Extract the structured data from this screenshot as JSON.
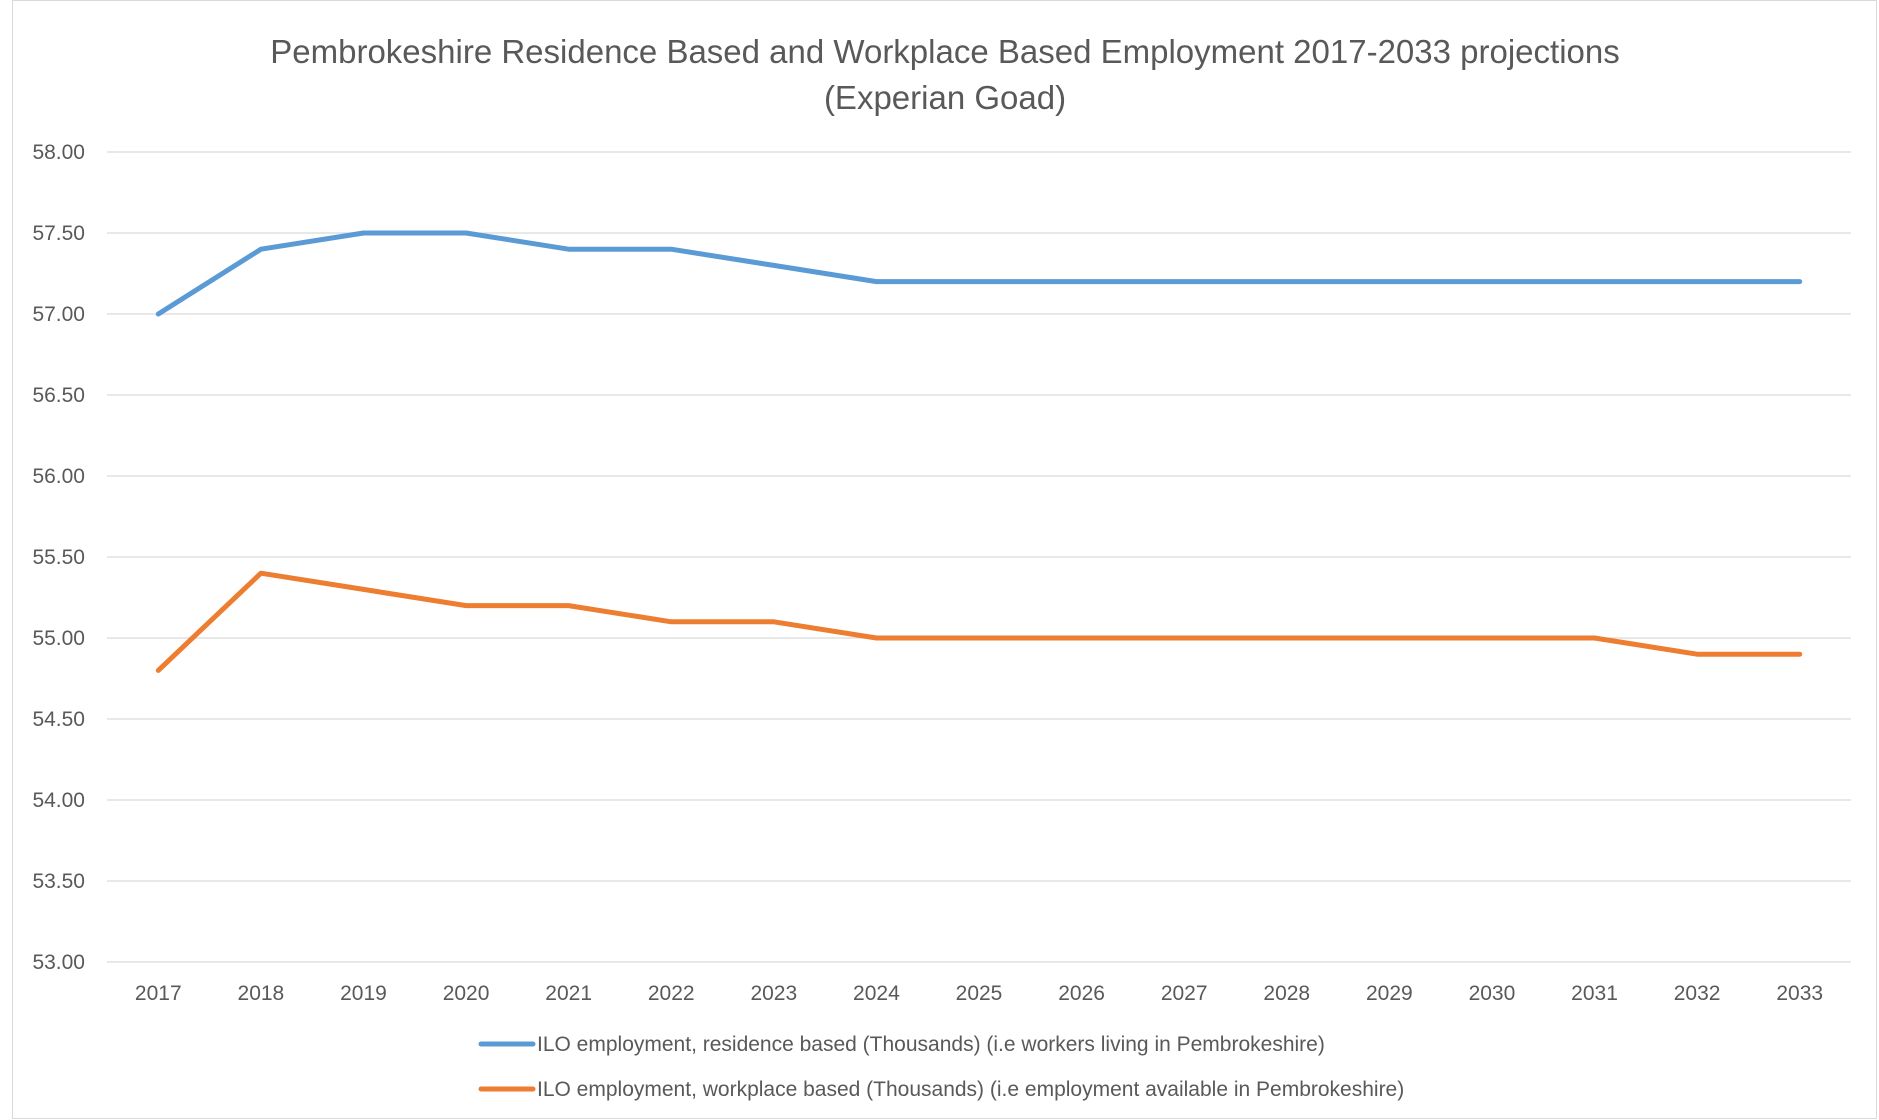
{
  "chart_data": {
    "type": "line",
    "title": "Pembrokeshire Residence Based and Workplace Based Employment 2017-2033 projections",
    "subtitle": "(Experian Goad)",
    "xlabel": "",
    "ylabel": "",
    "categories": [
      "2017",
      "2018",
      "2019",
      "2020",
      "2021",
      "2022",
      "2023",
      "2024",
      "2025",
      "2026",
      "2027",
      "2028",
      "2029",
      "2030",
      "2031",
      "2032",
      "2033"
    ],
    "ylim": [
      53.0,
      58.0
    ],
    "y_ticks": [
      "53.00",
      "53.50",
      "54.00",
      "54.50",
      "55.00",
      "55.50",
      "56.00",
      "56.50",
      "57.00",
      "57.50",
      "58.00"
    ],
    "grid": true,
    "legend_position": "bottom",
    "series": [
      {
        "name": "ILO employment, residence based (Thousands) (i.e workers living in Pembrokeshire)",
        "color": "#5b9bd5",
        "values": [
          57.0,
          57.4,
          57.5,
          57.5,
          57.4,
          57.4,
          57.3,
          57.2,
          57.2,
          57.2,
          57.2,
          57.2,
          57.2,
          57.2,
          57.2,
          57.2,
          57.2
        ]
      },
      {
        "name": "ILO employment, workplace based (Thousands) (i.e employment available in Pembrokeshire)",
        "color": "#ed7d31",
        "values": [
          54.8,
          55.4,
          55.3,
          55.2,
          55.2,
          55.1,
          55.1,
          55.0,
          55.0,
          55.0,
          55.0,
          55.0,
          55.0,
          55.0,
          55.0,
          54.9,
          54.9
        ]
      }
    ]
  }
}
